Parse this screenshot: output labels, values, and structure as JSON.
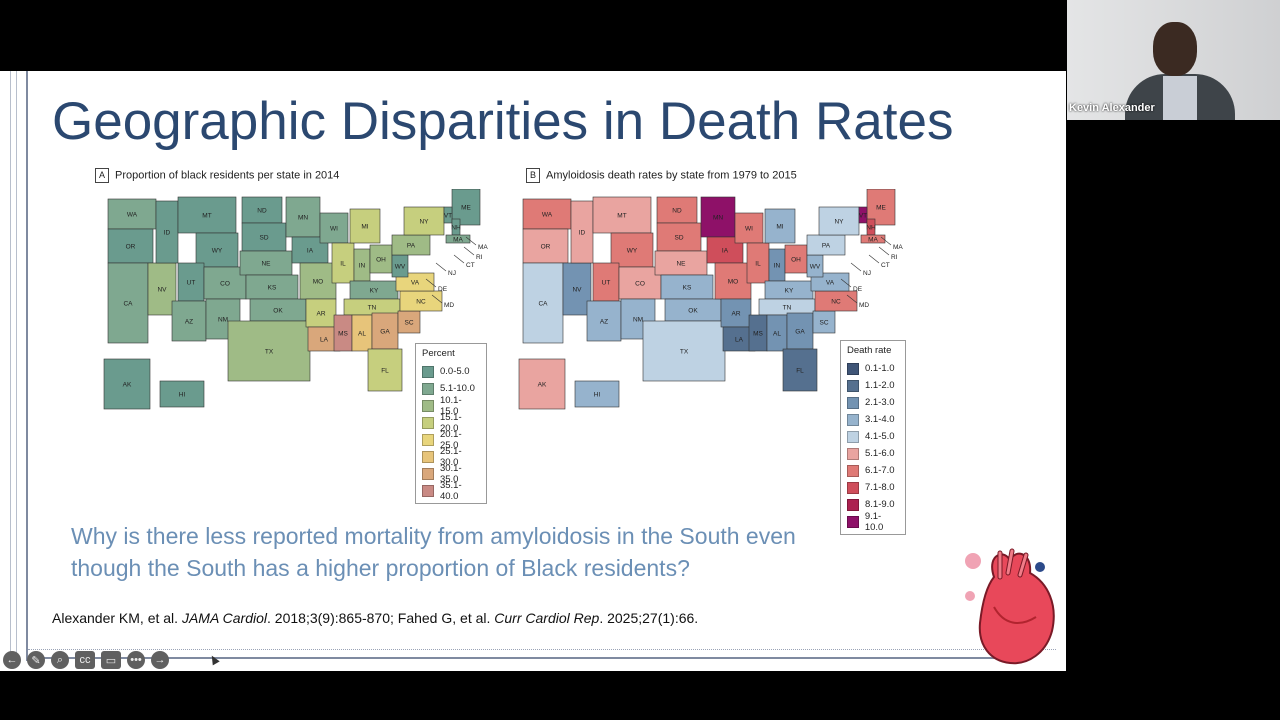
{
  "slide": {
    "title": "Geographic Disparities in Death Rates",
    "panel_a": {
      "letter": "A",
      "label": "Proportion of black residents per state in 2014",
      "legend_title": "Percent",
      "legend": [
        {
          "range": "0.0-5.0",
          "color": "#6a9b8e"
        },
        {
          "range": "5.1-10.0",
          "color": "#7fa890"
        },
        {
          "range": "10.1-15.0",
          "color": "#9fbb86"
        },
        {
          "range": "15.1-20.0",
          "color": "#c6cf7e"
        },
        {
          "range": "20.1-25.0",
          "color": "#e8d57c"
        },
        {
          "range": "25.1-30.0",
          "color": "#e7c47a"
        },
        {
          "range": "30.1-35.0",
          "color": "#d9a77b"
        },
        {
          "range": "35.1-40.0",
          "color": "#c98a84"
        }
      ]
    },
    "panel_b": {
      "letter": "B",
      "label": "Amyloidosis death rates by state from 1979 to 2015",
      "legend_title": "Death rate",
      "legend": [
        {
          "range": "0.1-1.0",
          "color": "#3f5577"
        },
        {
          "range": "1.1-2.0",
          "color": "#55708f"
        },
        {
          "range": "2.1-3.0",
          "color": "#7393b2"
        },
        {
          "range": "3.1-4.0",
          "color": "#96b3cd"
        },
        {
          "range": "4.1-5.0",
          "color": "#bed2e3"
        },
        {
          "range": "5.1-6.0",
          "color": "#e9a4a0"
        },
        {
          "range": "6.1-7.0",
          "color": "#df7a76"
        },
        {
          "range": "7.1-8.0",
          "color": "#cf4e5b"
        },
        {
          "range": "8.1-9.0",
          "color": "#ac2150"
        },
        {
          "range": "9.1-10.0",
          "color": "#8e1168"
        }
      ]
    },
    "question": "Why is there less reported mortality from amyloidosis in the South even though the South has a higher proportion of Black residents?",
    "citation": {
      "part1": "Alexander KM, et al. ",
      "journal1": "JAMA Cardiol",
      "part2": ". 2018;3(9):865-870; Fahed G, et al. ",
      "journal2": "Curr Cardiol Rep",
      "part3": ". 2025;27(1):66."
    }
  },
  "maps": {
    "a": {
      "states": [
        {
          "s": "WA",
          "c": 1
        },
        {
          "s": "OR",
          "c": 0
        },
        {
          "s": "CA",
          "c": 1
        },
        {
          "s": "NV",
          "c": 2
        },
        {
          "s": "ID",
          "c": 0
        },
        {
          "s": "MT",
          "c": 0
        },
        {
          "s": "WY",
          "c": 0
        },
        {
          "s": "UT",
          "c": 0
        },
        {
          "s": "AZ",
          "c": 1
        },
        {
          "s": "CO",
          "c": 1
        },
        {
          "s": "NM",
          "c": 1
        },
        {
          "s": "ND",
          "c": 0
        },
        {
          "s": "SD",
          "c": 0
        },
        {
          "s": "NE",
          "c": 1
        },
        {
          "s": "KS",
          "c": 1
        },
        {
          "s": "OK",
          "c": 1
        },
        {
          "s": "TX",
          "c": 2
        },
        {
          "s": "MN",
          "c": 1
        },
        {
          "s": "IA",
          "c": 0
        },
        {
          "s": "MO",
          "c": 2
        },
        {
          "s": "AR",
          "c": 3
        },
        {
          "s": "LA",
          "c": 6
        },
        {
          "s": "WI",
          "c": 1
        },
        {
          "s": "IL",
          "c": 3
        },
        {
          "s": "MI",
          "c": 3
        },
        {
          "s": "IN",
          "c": 2
        },
        {
          "s": "OH",
          "c": 2
        },
        {
          "s": "KY",
          "c": 1
        },
        {
          "s": "TN",
          "c": 3
        },
        {
          "s": "MS",
          "c": 7
        },
        {
          "s": "AL",
          "c": 5
        },
        {
          "s": "GA",
          "c": 6
        },
        {
          "s": "FL",
          "c": 3
        },
        {
          "s": "SC",
          "c": 6
        },
        {
          "s": "NC",
          "c": 4
        },
        {
          "s": "VA",
          "c": 4
        },
        {
          "s": "WV",
          "c": 0
        },
        {
          "s": "PA",
          "c": 2
        },
        {
          "s": "NY",
          "c": 3
        },
        {
          "s": "ME",
          "c": 0
        },
        {
          "s": "VT",
          "c": 0
        },
        {
          "s": "NH",
          "c": 0
        },
        {
          "s": "MA",
          "c": 1
        },
        {
          "s": "AK",
          "c": 0
        },
        {
          "s": "HI",
          "c": 0
        }
      ],
      "callouts": [
        "NJ",
        "DE",
        "MD",
        "CT",
        "RI",
        "MA"
      ]
    },
    "b": {
      "states": [
        {
          "s": "WA",
          "c": 6
        },
        {
          "s": "OR",
          "c": 5
        },
        {
          "s": "CA",
          "c": 4
        },
        {
          "s": "NV",
          "c": 2
        },
        {
          "s": "ID",
          "c": 5
        },
        {
          "s": "MT",
          "c": 5
        },
        {
          "s": "WY",
          "c": 6
        },
        {
          "s": "UT",
          "c": 6
        },
        {
          "s": "AZ",
          "c": 3
        },
        {
          "s": "CO",
          "c": 5
        },
        {
          "s": "NM",
          "c": 3
        },
        {
          "s": "ND",
          "c": 6
        },
        {
          "s": "SD",
          "c": 6
        },
        {
          "s": "NE",
          "c": 5
        },
        {
          "s": "KS",
          "c": 3
        },
        {
          "s": "OK",
          "c": 3
        },
        {
          "s": "TX",
          "c": 4
        },
        {
          "s": "MN",
          "c": 9
        },
        {
          "s": "IA",
          "c": 7
        },
        {
          "s": "MO",
          "c": 6
        },
        {
          "s": "AR",
          "c": 2
        },
        {
          "s": "LA",
          "c": 1
        },
        {
          "s": "WI",
          "c": 6
        },
        {
          "s": "IL",
          "c": 6
        },
        {
          "s": "MI",
          "c": 3
        },
        {
          "s": "IN",
          "c": 2
        },
        {
          "s": "OH",
          "c": 6
        },
        {
          "s": "KY",
          "c": 3
        },
        {
          "s": "TN",
          "c": 4
        },
        {
          "s": "MS",
          "c": 1
        },
        {
          "s": "AL",
          "c": 2
        },
        {
          "s": "GA",
          "c": 2
        },
        {
          "s": "FL",
          "c": 1
        },
        {
          "s": "SC",
          "c": 3
        },
        {
          "s": "NC",
          "c": 6
        },
        {
          "s": "VA",
          "c": 3
        },
        {
          "s": "WV",
          "c": 3
        },
        {
          "s": "PA",
          "c": 4
        },
        {
          "s": "NY",
          "c": 4
        },
        {
          "s": "ME",
          "c": 6
        },
        {
          "s": "VT",
          "c": 9
        },
        {
          "s": "NH",
          "c": 7
        },
        {
          "s": "MA",
          "c": 6
        },
        {
          "s": "AK",
          "c": 5
        },
        {
          "s": "HI",
          "c": 3
        }
      ],
      "callouts": [
        "NJ",
        "DE",
        "MD",
        "CT",
        "RI",
        "MA"
      ]
    }
  },
  "toolbar": {
    "icons": [
      "back-arrow-icon",
      "pen-icon",
      "zoom-icon",
      "caption-icon",
      "slide-icon",
      "more-icon",
      "forward-arrow-icon"
    ],
    "symbols": [
      "←",
      "✎",
      "⌕",
      "cc",
      "▭",
      "•••",
      "→"
    ]
  },
  "video": {
    "speaker_name": "Kevin Alexander"
  }
}
